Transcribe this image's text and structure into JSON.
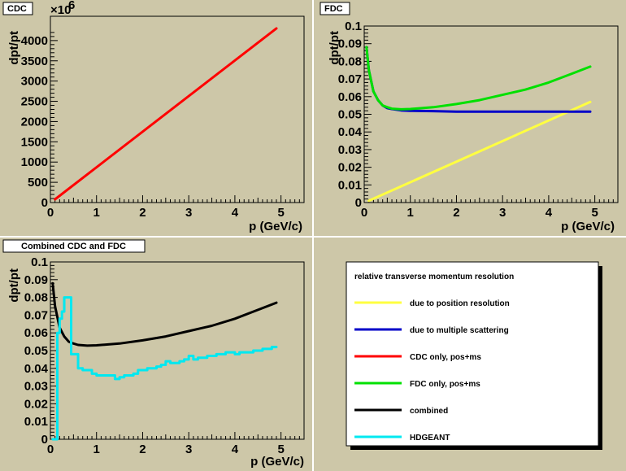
{
  "colors": {
    "pad": "#cdc7a8",
    "position_resolution": "#ffff40",
    "multiple_scattering": "#0000c8",
    "cdc": "#ff0000",
    "fdc": "#00e000",
    "combined": "#000000",
    "hdgeant": "#00e8f0"
  },
  "pads": {
    "cdc": {
      "title": "CDC",
      "ylabel": "dpt/pt",
      "xlabel": "",
      "exponent_label": "×10",
      "exponent_power": "6"
    },
    "fdc": {
      "title": "FDC",
      "ylabel": "dpt/pt",
      "xlabel": "p (GeV/c)"
    },
    "combined": {
      "title": "Combined CDC and FDC",
      "ylabel": "dpt/pt",
      "xlabel": "p (GeV/c)"
    }
  },
  "cdc_xlabel": "p (GeV/c)",
  "legend": {
    "header": "relative transverse momentum resolution",
    "entries": [
      {
        "label": "due to position resolution",
        "color": "#ffff40"
      },
      {
        "label": "due to multiple scattering",
        "color": "#0000c8"
      },
      {
        "label": "CDC only, pos+ms",
        "color": "#ff0000"
      },
      {
        "label": "FDC only, pos+ms",
        "color": "#00e000"
      },
      {
        "label": "combined",
        "color": "#000000"
      },
      {
        "label": "HDGEANT",
        "color": "#00e8f0"
      }
    ]
  },
  "chart_data": [
    {
      "id": "cdc",
      "type": "line",
      "title": "CDC",
      "xlabel": "p (GeV/c)",
      "ylabel": "dpt/pt",
      "xlim": [
        0,
        5.5
      ],
      "ylim": [
        0,
        4600
      ],
      "y_multiplier_label": "×10^6",
      "xticks": [
        "0",
        "1",
        "2",
        "3",
        "4",
        "5"
      ],
      "yticks": [
        "0",
        "500",
        "1000",
        "1500",
        "2000",
        "2500",
        "3000",
        "3500",
        "4000"
      ],
      "series": [
        {
          "name": "CDC only, pos+ms",
          "color": "#ff0000",
          "x": [
            0.1,
            4.9
          ],
          "y": [
            80,
            4300
          ]
        }
      ]
    },
    {
      "id": "fdc",
      "type": "line",
      "title": "FDC",
      "xlabel": "p (GeV/c)",
      "ylabel": "dpt/pt",
      "xlim": [
        0,
        5.5
      ],
      "ylim": [
        0,
        0.1
      ],
      "xticks": [
        "0",
        "1",
        "2",
        "3",
        "4",
        "5"
      ],
      "yticks": [
        "0",
        "0.01",
        "0.02",
        "0.03",
        "0.04",
        "0.05",
        "0.06",
        "0.07",
        "0.08",
        "0.09",
        "0.1"
      ],
      "series": [
        {
          "name": "due to position resolution",
          "color": "#ffff40",
          "x": [
            0.1,
            4.9
          ],
          "y": [
            0.001,
            0.057
          ]
        },
        {
          "name": "due to multiple scattering",
          "color": "#0000c8",
          "x": [
            0.05,
            0.1,
            0.2,
            0.3,
            0.4,
            0.5,
            0.6,
            0.8,
            1.0,
            1.5,
            2.0,
            3.0,
            4.0,
            4.9
          ],
          "y": [
            0.088,
            0.075,
            0.063,
            0.058,
            0.055,
            0.0535,
            0.053,
            0.0522,
            0.052,
            0.0518,
            0.0515,
            0.0515,
            0.0515,
            0.0515
          ]
        },
        {
          "name": "FDC only, pos+ms",
          "color": "#00e000",
          "x": [
            0.05,
            0.1,
            0.2,
            0.3,
            0.4,
            0.5,
            0.6,
            0.8,
            1.0,
            1.5,
            2.0,
            2.5,
            3.0,
            3.5,
            4.0,
            4.5,
            4.9
          ],
          "y": [
            0.088,
            0.075,
            0.063,
            0.058,
            0.055,
            0.054,
            0.0532,
            0.0528,
            0.053,
            0.054,
            0.0558,
            0.058,
            0.061,
            0.064,
            0.068,
            0.073,
            0.077
          ]
        }
      ]
    },
    {
      "id": "combined",
      "type": "line",
      "title": "Combined CDC and FDC",
      "xlabel": "p (GeV/c)",
      "ylabel": "dpt/pt",
      "xlim": [
        0,
        5.5
      ],
      "ylim": [
        0,
        0.1
      ],
      "xticks": [
        "0",
        "1",
        "2",
        "3",
        "4",
        "5"
      ],
      "yticks": [
        "0",
        "0.01",
        "0.02",
        "0.03",
        "0.04",
        "0.05",
        "0.06",
        "0.07",
        "0.08",
        "0.09",
        "0.1"
      ],
      "series": [
        {
          "name": "combined",
          "color": "#000000",
          "x": [
            0.05,
            0.1,
            0.2,
            0.3,
            0.4,
            0.5,
            0.6,
            0.8,
            1.0,
            1.5,
            2.0,
            2.5,
            3.0,
            3.5,
            4.0,
            4.5,
            4.9
          ],
          "y": [
            0.088,
            0.075,
            0.063,
            0.058,
            0.055,
            0.054,
            0.0532,
            0.0528,
            0.053,
            0.054,
            0.0558,
            0.058,
            0.061,
            0.064,
            0.068,
            0.073,
            0.077
          ]
        },
        {
          "name": "HDGEANT",
          "color": "#00e8f0",
          "x": [
            0.05,
            0.1,
            0.15,
            0.2,
            0.25,
            0.3,
            0.35,
            0.4,
            0.45,
            0.5,
            0.55,
            0.6,
            0.65,
            0.7,
            0.8,
            0.9,
            1.0,
            1.1,
            1.2,
            1.3,
            1.4,
            1.5,
            1.6,
            1.7,
            1.8,
            1.9,
            2.0,
            2.1,
            2.2,
            2.3,
            2.4,
            2.5,
            2.6,
            2.7,
            2.8,
            2.9,
            3.0,
            3.1,
            3.2,
            3.3,
            3.4,
            3.5,
            3.6,
            3.7,
            3.8,
            3.9,
            4.0,
            4.1,
            4.2,
            4.3,
            4.4,
            4.5,
            4.6,
            4.7,
            4.8,
            4.9
          ],
          "y": [
            0.0,
            0.0,
            0.06,
            0.068,
            0.072,
            0.08,
            0.08,
            0.08,
            0.048,
            0.048,
            0.048,
            0.04,
            0.04,
            0.039,
            0.039,
            0.037,
            0.036,
            0.036,
            0.036,
            0.036,
            0.034,
            0.035,
            0.036,
            0.036,
            0.037,
            0.039,
            0.039,
            0.04,
            0.04,
            0.041,
            0.042,
            0.044,
            0.043,
            0.043,
            0.044,
            0.045,
            0.047,
            0.045,
            0.046,
            0.046,
            0.047,
            0.047,
            0.048,
            0.048,
            0.049,
            0.049,
            0.048,
            0.049,
            0.049,
            0.049,
            0.05,
            0.05,
            0.051,
            0.051,
            0.052,
            0.052
          ]
        }
      ]
    }
  ]
}
